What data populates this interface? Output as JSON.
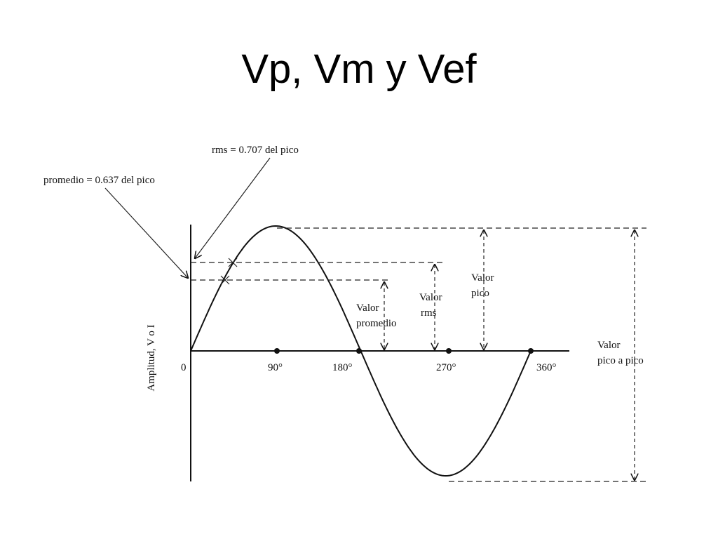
{
  "title": "Vp, Vm y Vef",
  "annotations": {
    "rms": "rms = 0.707 del pico",
    "average": "promedio = 0.637 del pico"
  },
  "axis_label": "Amplitud, V o I",
  "x_labels": [
    "0",
    "90°",
    "180°",
    "270°",
    "360°"
  ],
  "callouts": {
    "average": [
      "Valor",
      "promedio"
    ],
    "rms": [
      "Valor",
      "rms"
    ],
    "peak": [
      "Valor",
      "pico"
    ],
    "peak_to_peak": [
      "Valor",
      "pico a pico"
    ]
  }
}
